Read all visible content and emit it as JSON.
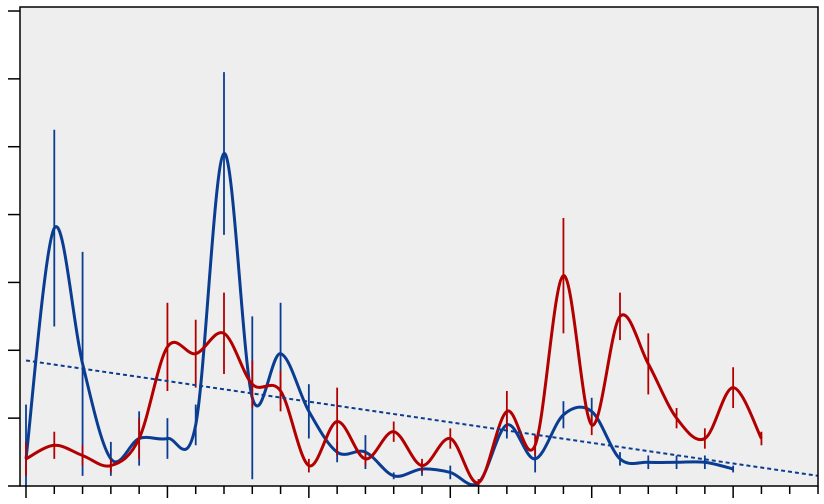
{
  "chart_data": {
    "type": "line",
    "title": "",
    "xlabel": "",
    "ylabel": "",
    "xlim": [
      0,
      28
    ],
    "ylim": [
      0,
      7
    ],
    "grid": false,
    "legend": "none",
    "background": "#eeeeee",
    "x": [
      0,
      1,
      2,
      3,
      4,
      5,
      6,
      7,
      8,
      9,
      10,
      11,
      12,
      13,
      14,
      15,
      16,
      17,
      18,
      19,
      20,
      21,
      22,
      23,
      24,
      25,
      26,
      27,
      28
    ],
    "series": [
      {
        "color": "#0a3d91",
        "values": [
          0.4,
          3.8,
          1.8,
          0.4,
          0.7,
          0.7,
          0.9,
          4.9,
          1.3,
          1.95,
          1.1,
          0.5,
          0.5,
          0.15,
          0.25,
          0.2,
          0.05,
          0.9,
          0.4,
          1.05,
          1.1,
          0.4,
          0.35,
          0.35,
          0.35,
          0.25
        ],
        "x": [
          0,
          1,
          2,
          3,
          4,
          5,
          6,
          7,
          8,
          9,
          10,
          11,
          12,
          13,
          14,
          15,
          16,
          17,
          18,
          19,
          20,
          21,
          22,
          23,
          24,
          25
        ],
        "error_bars": [
          0.8,
          1.45,
          1.65,
          0.25,
          0.4,
          0.3,
          0.3,
          1.2,
          1.2,
          0.75,
          0.4,
          0.15,
          0.25,
          0.05,
          0.1,
          0.1,
          0.05,
          0.2,
          0.2,
          0.2,
          0.2,
          0.1,
          0.1,
          0.1,
          0.1,
          0.05
        ]
      },
      {
        "color": "#b20000",
        "values": [
          0.4,
          0.6,
          0.45,
          0.3,
          0.7,
          2.05,
          1.95,
          2.25,
          1.5,
          1.4,
          0.3,
          0.95,
          0.4,
          0.8,
          0.3,
          0.7,
          0.05,
          1.1,
          0.6,
          3.1,
          0.9,
          2.5,
          1.8,
          1.0,
          0.7,
          1.45,
          0.7
        ],
        "x": [
          0,
          1,
          2,
          3,
          4,
          5,
          6,
          7,
          8,
          9,
          10,
          11,
          12,
          13,
          14,
          15,
          16,
          17,
          18,
          19,
          20,
          21,
          22,
          23,
          24,
          25,
          26
        ],
        "error_bars": [
          0.25,
          0.2,
          0.15,
          0.1,
          0.3,
          0.65,
          0.5,
          0.6,
          0.35,
          0.3,
          0.1,
          0.5,
          0.1,
          0.15,
          0.1,
          0.15,
          0.05,
          0.3,
          0.15,
          0.85,
          0.15,
          0.35,
          0.45,
          0.15,
          0.15,
          0.3,
          0.1
        ]
      },
      {
        "type": "trend",
        "color": "#0a3d91",
        "dash": "4,3",
        "x": [
          0,
          28
        ],
        "values": [
          1.85,
          0.15
        ]
      }
    ],
    "yticks": [
      0,
      1,
      2,
      3,
      4,
      5,
      6,
      7
    ],
    "xticks_minor_step": 1,
    "xticks_major_step": 5
  }
}
